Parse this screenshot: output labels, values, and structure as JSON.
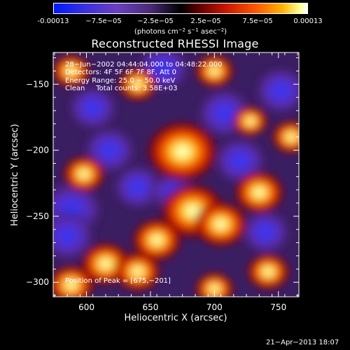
{
  "colorbar": {
    "labels": [
      "-0.00013",
      "−7.5e−05",
      "−2.5e−05",
      "2.5e−05",
      "7.5e−05",
      "0.00013"
    ],
    "units_main": "(photons cm",
    "units_exp1": "−2",
    "units_s": " s",
    "units_exp2": "−1",
    "units_asec": " asec",
    "units_exp3": "−2",
    "units_close": ")"
  },
  "annotations": {
    "line1": "28−Jun−2002 04:44:04.000 to 04:48:22.000",
    "line2": "Detectors: 4F 5F 6F 7F 8F, Att 0",
    "line3": "Energy Range: 25.0 − 50.0 keV",
    "line4": "Clean     Total counts: 3.58E+03",
    "peak": "Position of Peak = [675,−201]"
  },
  "footer": "21−Apr−2013 18:07",
  "chart_data": {
    "type": "heatmap",
    "title": "Reconstructed RHESSI Image",
    "xlabel": "Heliocentric X (arcsec)",
    "ylabel": "Heliocentric Y (arcsec)",
    "xlim": [
      574,
      766
    ],
    "ylim": [
      -311,
      -126
    ],
    "x_ticks": [
      600,
      650,
      700,
      750
    ],
    "x_tick_labels": [
      "600",
      "650",
      "700",
      "750"
    ],
    "y_ticks": [
      -150,
      -200,
      -250,
      -300
    ],
    "y_tick_labels": [
      "−150",
      "−200",
      "−250",
      "−300"
    ],
    "colorscale": "bipolar: blue-purple (negative) / black (zero) / red-orange-yellow-white (positive)",
    "color_range": [
      -0.00013,
      0.00013
    ],
    "peak_position": [
      675,
      -201
    ],
    "sources": [
      {
        "x": 675,
        "y": -201,
        "value": 0.00013
      },
      {
        "x": 683,
        "y": -246,
        "value": 0.00011
      },
      {
        "x": 705,
        "y": -256,
        "value": 8e-05
      },
      {
        "x": 655,
        "y": -268,
        "value": 7e-05
      },
      {
        "x": 735,
        "y": -232,
        "value": 7e-05
      },
      {
        "x": 615,
        "y": -286,
        "value": 7e-05
      },
      {
        "x": 640,
        "y": -292,
        "value": 6e-05
      },
      {
        "x": 588,
        "y": -302,
        "value": 6e-05
      },
      {
        "x": 598,
        "y": -218,
        "value": 5e-05
      },
      {
        "x": 588,
        "y": -140,
        "value": 4e-05
      },
      {
        "x": 640,
        "y": -150,
        "value": 4e-05
      },
      {
        "x": 700,
        "y": -140,
        "value": 4e-05
      },
      {
        "x": 742,
        "y": -292,
        "value": 5e-05
      },
      {
        "x": 760,
        "y": -190,
        "value": 4e-05
      },
      {
        "x": 700,
        "y": -305,
        "value": 4e-05
      },
      {
        "x": 728,
        "y": -178,
        "value": 3e-05
      }
    ],
    "negative_regions": [
      {
        "x": 588,
        "y": -245,
        "value": -0.00013
      },
      {
        "x": 585,
        "y": -265,
        "value": -0.0001
      },
      {
        "x": 618,
        "y": -200,
        "value": -9e-05
      },
      {
        "x": 605,
        "y": -168,
        "value": -8e-05
      },
      {
        "x": 640,
        "y": -228,
        "value": -8e-05
      },
      {
        "x": 660,
        "y": -138,
        "value": -9e-05
      },
      {
        "x": 708,
        "y": -172,
        "value": -0.0001
      },
      {
        "x": 720,
        "y": -208,
        "value": -9e-05
      },
      {
        "x": 752,
        "y": -155,
        "value": -9e-05
      },
      {
        "x": 740,
        "y": -262,
        "value": -8e-05
      },
      {
        "x": 668,
        "y": -232,
        "value": -7e-05
      }
    ]
  }
}
